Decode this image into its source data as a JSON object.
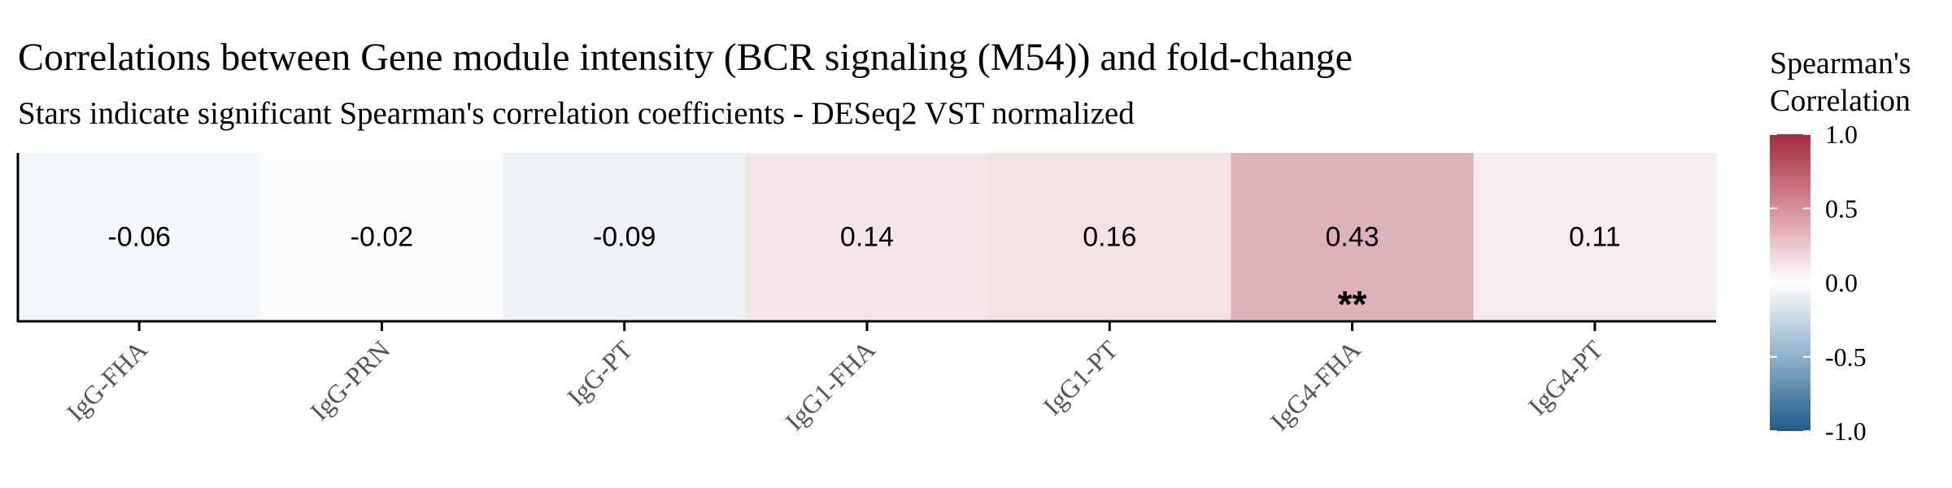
{
  "chart_data": {
    "type": "heatmap",
    "title": "Correlations between Gene module intensity (BCR signaling (M54)) and fold-change",
    "subtitle": "Stars indicate significant Spearman's correlation coefficients - DESeq2 VST normalized",
    "categories": [
      "IgG-FHA",
      "IgG-PRN",
      "IgG-PT",
      "IgG1-FHA",
      "IgG1-PT",
      "IgG4-FHA",
      "IgG4-PT"
    ],
    "values": [
      -0.06,
      -0.02,
      -0.09,
      0.14,
      0.16,
      0.43,
      0.11
    ],
    "value_labels": [
      "-0.06",
      "-0.02",
      "-0.09",
      "0.14",
      "0.16",
      "0.43",
      "0.11"
    ],
    "significance": [
      "",
      "",
      "",
      "",
      "",
      "**",
      ""
    ],
    "legend": {
      "title_line1": "Spearman's",
      "title_line2": "Correlation",
      "range": [
        -1.0,
        1.0
      ],
      "ticks": [
        1.0,
        0.5,
        0.0,
        -0.5,
        -1.0
      ],
      "tick_labels": [
        "1.0",
        "0.5",
        "0.0",
        "-0.5",
        "-1.0"
      ],
      "placement": "right",
      "colors": {
        "low": "#1f5a8c",
        "mid": "#ffffff",
        "high": "#a32b3c"
      }
    }
  }
}
